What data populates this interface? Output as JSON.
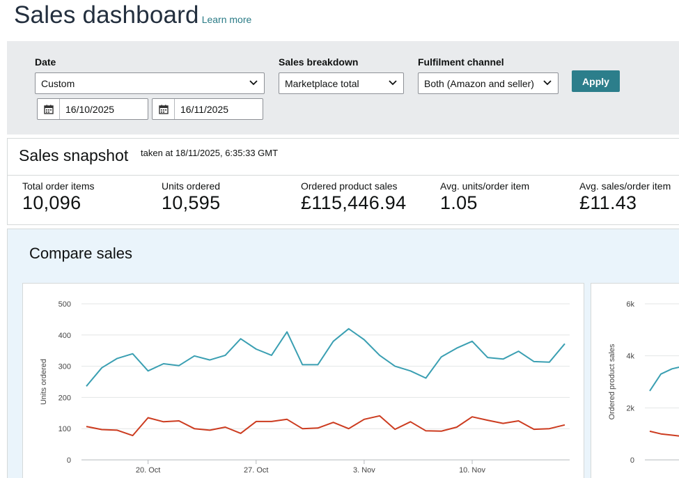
{
  "header": {
    "title": "Sales dashboard",
    "learn_more": "Learn more"
  },
  "filters": {
    "date_label": "Date",
    "date_value": "Custom",
    "start_date": "16/10/2025",
    "end_date": "16/11/2025",
    "breakdown_label": "Sales breakdown",
    "breakdown_value": "Marketplace total",
    "channel_label": "Fulfilment channel",
    "channel_value": "Both (Amazon and seller)",
    "apply_label": "Apply"
  },
  "snapshot": {
    "title": "Sales snapshot",
    "taken_at": "taken at 18/11/2025, 6:35:33 GMT",
    "metrics": [
      {
        "label": "Total order items",
        "value": "10,096"
      },
      {
        "label": "Units ordered",
        "value": "10,595"
      },
      {
        "label": "Ordered product sales",
        "value": "£115,446.94"
      },
      {
        "label": "Avg. units/order item",
        "value": "1.05"
      },
      {
        "label": "Avg. sales/order item",
        "value": "£11.43"
      }
    ]
  },
  "compare": {
    "title": "Compare sales"
  },
  "colors": {
    "series_current": "#3a9fb2",
    "series_previous": "#cc3b1f",
    "accent": "#2c7e8b",
    "link": "#2a7b86"
  },
  "chart_data": [
    {
      "type": "line",
      "ylabel": "Units ordered",
      "ylim": [
        0,
        500
      ],
      "yticks": [
        "0",
        "100",
        "200",
        "300",
        "400",
        "500"
      ],
      "xtick_labels": [
        "20. Oct",
        "27. Oct",
        "3. Nov",
        "10. Nov"
      ],
      "xtick_index": [
        4,
        11,
        18,
        25
      ],
      "grid": true,
      "series": [
        {
          "color": "#3a9fb2",
          "values": [
            236,
            295,
            325,
            340,
            285,
            308,
            302,
            333,
            320,
            335,
            388,
            355,
            335,
            410,
            305,
            305,
            380,
            420,
            385,
            335,
            300,
            285,
            262,
            330,
            358,
            380,
            328,
            323,
            348,
            315,
            313,
            372
          ]
        },
        {
          "color": "#cc3b1f",
          "values": [
            107,
            97,
            95,
            78,
            135,
            122,
            125,
            100,
            95,
            105,
            85,
            123,
            123,
            130,
            100,
            102,
            120,
            100,
            130,
            141,
            98,
            122,
            93,
            92,
            105,
            138,
            127,
            117,
            125,
            98,
            100,
            112
          ]
        }
      ]
    },
    {
      "type": "line",
      "ylabel": "Ordered product sales",
      "ylim": [
        0,
        6000
      ],
      "yticks": [
        "0",
        "2k",
        "4k",
        "6k"
      ],
      "grid": true,
      "series": [
        {
          "color": "#3a9fb2",
          "values": [
            2650,
            3300,
            3500,
            3600
          ]
        },
        {
          "color": "#cc3b1f",
          "values": [
            1100,
            1000,
            950,
            900
          ]
        }
      ]
    }
  ]
}
